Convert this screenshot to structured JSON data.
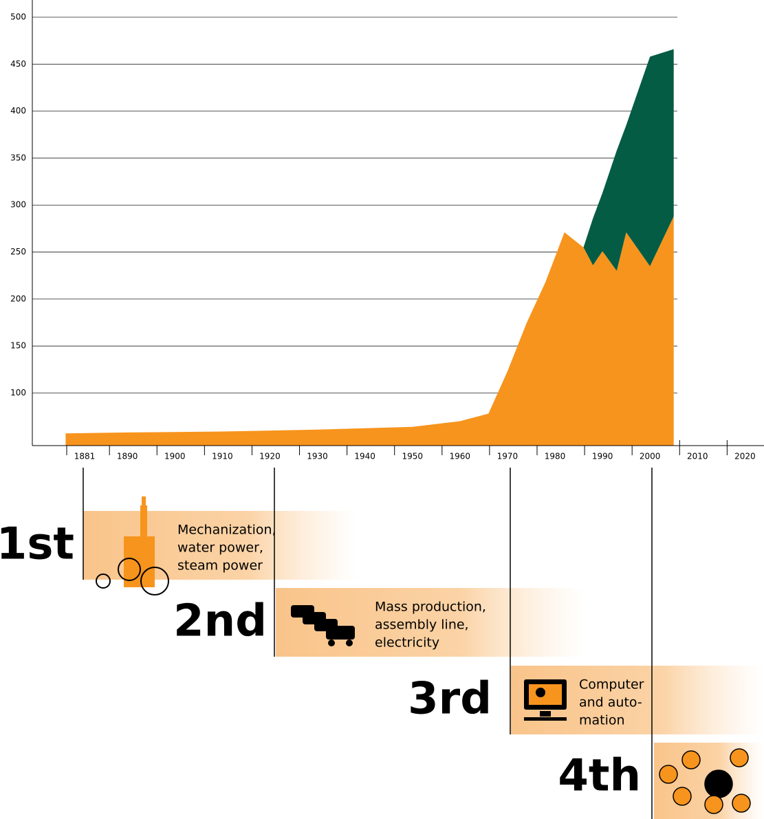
{
  "chart_data": {
    "type": "area",
    "x": [
      1877,
      1890,
      1910,
      1930,
      1950,
      1960,
      1966,
      1970,
      1974,
      1978,
      1982,
      1986,
      1988,
      1990,
      1993,
      1995,
      2000,
      2005
    ],
    "series": [
      {
        "color": "#f7941d",
        "values": [
          57,
          58,
          59,
          61,
          64,
          70,
          78,
          123,
          174,
          218,
          271,
          255,
          236,
          251,
          230,
          271,
          235,
          288
        ]
      },
      {
        "color": "#045c45",
        "values": [
          null,
          null,
          null,
          null,
          null,
          null,
          null,
          null,
          null,
          null,
          null,
          0,
          50,
          62,
          128,
          114,
          223,
          178
        ]
      }
    ],
    "xlim": [
      1870,
      2024
    ],
    "xticks": [
      1881,
      1890,
      1900,
      1910,
      1920,
      1930,
      1940,
      1950,
      1960,
      1970,
      1980,
      1990,
      2000,
      2010,
      2020
    ],
    "ylim": [
      44,
      500
    ],
    "yticks": [
      100,
      150,
      200,
      250,
      300,
      350,
      400,
      450,
      500
    ],
    "grid": true,
    "eras": [
      {
        "ordinal": "1st",
        "description": [
          "Mechanization,",
          "water power,",
          "steam power"
        ]
      },
      {
        "ordinal": "2nd",
        "description": [
          "Mass production,",
          "assembly line,",
          "electricity"
        ]
      },
      {
        "ordinal": "3rd",
        "description": [
          "Computer",
          "and auto-",
          "mation"
        ]
      },
      {
        "ordinal": "4th",
        "description": []
      }
    ]
  }
}
